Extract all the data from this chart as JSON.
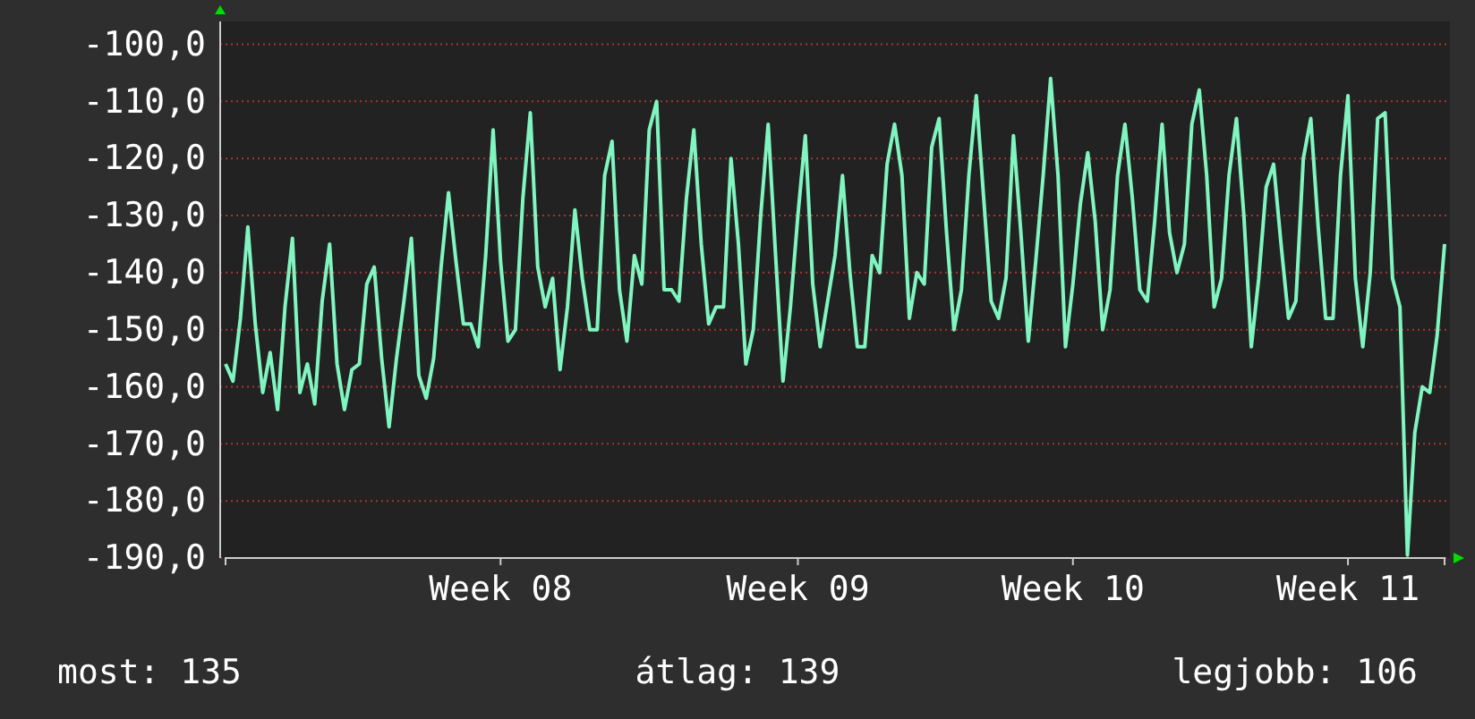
{
  "chart_data": {
    "type": "line",
    "categories": [
      null,
      null,
      null,
      null,
      null,
      null,
      null,
      null,
      null,
      null,
      null,
      null,
      null,
      null,
      null,
      null,
      null,
      null,
      null,
      null,
      null,
      null,
      null,
      null,
      null,
      null,
      null,
      null,
      null,
      null,
      null,
      null,
      null,
      null,
      null,
      null,
      null,
      "Week 08",
      null,
      null,
      null,
      null,
      null,
      null,
      null,
      null,
      null,
      null,
      null,
      null,
      null,
      null,
      null,
      null,
      null,
      null,
      null,
      null,
      null,
      null,
      null,
      null,
      null,
      null,
      null,
      null,
      null,
      null,
      null,
      null,
      null,
      null,
      null,
      null,
      null,
      null,
      null,
      "Week 09",
      null,
      null,
      null,
      null,
      null,
      null,
      null,
      null,
      null,
      null,
      null,
      null,
      null,
      null,
      null,
      null,
      null,
      null,
      null,
      null,
      null,
      null,
      null,
      null,
      null,
      null,
      null,
      null,
      null,
      null,
      null,
      null,
      null,
      null,
      null,
      null,
      "Week 10",
      null,
      null,
      null,
      null,
      null,
      null,
      null,
      null,
      null,
      null,
      null,
      null,
      null,
      null,
      null,
      null,
      null,
      null,
      null,
      null,
      null,
      null,
      null,
      null,
      null,
      null,
      null,
      null,
      null,
      null,
      null,
      null,
      null,
      null,
      null,
      null,
      "Week 11",
      null,
      null,
      null,
      null,
      null,
      null,
      null,
      null,
      null,
      null,
      null,
      null,
      null
    ],
    "series": [
      {
        "color": "#80f5c0",
        "values": [
          -156,
          -159,
          -148,
          -132,
          -149,
          -161,
          -154,
          -164,
          -146,
          -134,
          -161,
          -156,
          -163,
          -145,
          -135,
          -156,
          -164,
          -157,
          -156,
          -142,
          -139,
          -155,
          -167,
          -155,
          -145,
          -134,
          -158,
          -162,
          -155,
          -139,
          -126,
          -138,
          -149,
          -149,
          -153,
          -137,
          -115,
          -138,
          -152,
          -150,
          -127,
          -112,
          -139,
          -146,
          -141,
          -157,
          -146,
          -129,
          -141,
          -150,
          -150,
          -123,
          -117,
          -143,
          -152,
          -137,
          -142,
          -115,
          -110,
          -143,
          -143,
          -145,
          -127,
          -115,
          -135,
          -149,
          -146,
          -146,
          -120,
          -135,
          -156,
          -150,
          -130,
          -114,
          -137,
          -159,
          -146,
          -130,
          -116,
          -142,
          -153,
          -145,
          -137,
          -123,
          -140,
          -153,
          -153,
          -137,
          -140,
          -121,
          -114,
          -123,
          -148,
          -140,
          -142,
          -118,
          -113,
          -133,
          -150,
          -143,
          -123,
          -109,
          -127,
          -145,
          -148,
          -141,
          -116,
          -133,
          -152,
          -138,
          -123,
          -106,
          -123,
          -153,
          -142,
          -128,
          -119,
          -131,
          -150,
          -143,
          -123,
          -114,
          -127,
          -143,
          -145,
          -131,
          -114,
          -133,
          -140,
          -135,
          -114,
          -108,
          -123,
          -146,
          -141,
          -123,
          -113,
          -130,
          -153,
          -141,
          -125,
          -121,
          -135,
          -148,
          -145,
          -120,
          -113,
          -132,
          -148,
          -148,
          -123,
          -109,
          -141,
          -153,
          -140,
          -113,
          -112,
          -141,
          -146,
          -189.5,
          -168,
          -160,
          -161,
          -151,
          -135
        ]
      }
    ],
    "ylim": [
      -190,
      -96
    ],
    "yticks": [
      {
        "value": -190,
        "label": "-190,0"
      },
      {
        "value": -180,
        "label": "-180,0"
      },
      {
        "value": -170,
        "label": "-170,0"
      },
      {
        "value": -160,
        "label": "-160,0"
      },
      {
        "value": -150,
        "label": "-150,0"
      },
      {
        "value": -140,
        "label": "-140,0"
      },
      {
        "value": -130,
        "label": "-130,0"
      },
      {
        "value": -120,
        "label": "-120,0"
      },
      {
        "value": -110,
        "label": "-110,0"
      },
      {
        "value": -100,
        "label": "-100,0"
      }
    ],
    "grid": "y",
    "marker": "none",
    "line_style": "solid",
    "annotations": [
      "most: 135",
      "átlag: 139",
      "legjobb: 106"
    ]
  }
}
